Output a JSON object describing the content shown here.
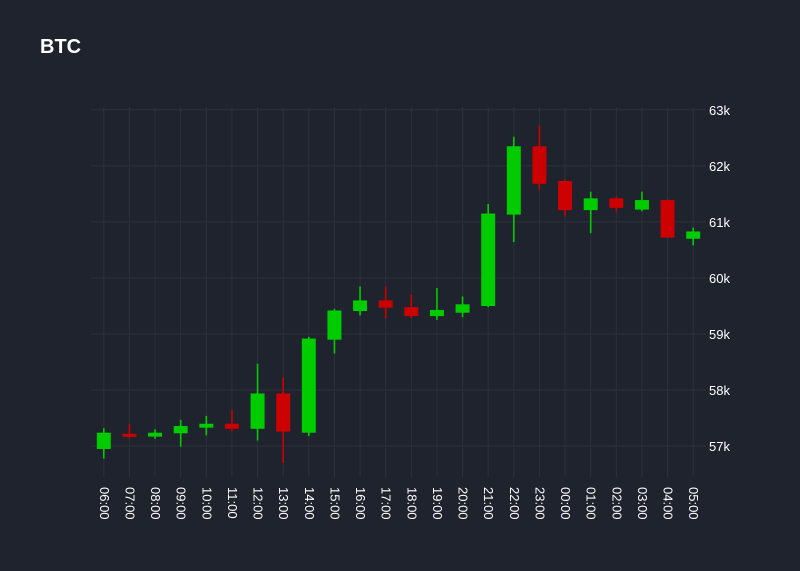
{
  "chart_data": {
    "type": "candlestick",
    "title": "BTC",
    "xlabel": "",
    "ylabel": "",
    "grid": true,
    "y_axis_position": "right",
    "ylim": [
      56450,
      63050
    ],
    "yticks": [
      57000,
      58000,
      59000,
      60000,
      61000,
      62000,
      63000
    ],
    "ytick_labels": [
      "57k",
      "58k",
      "59k",
      "60k",
      "61k",
      "62k",
      "63k"
    ],
    "categories": [
      "06:00",
      "07:00",
      "08:00",
      "09:00",
      "10:00",
      "11:00",
      "12:00",
      "13:00",
      "14:00",
      "15:00",
      "16:00",
      "17:00",
      "18:00",
      "19:00",
      "20:00",
      "21:00",
      "22:00",
      "23:00",
      "00:00",
      "01:00",
      "02:00",
      "03:00",
      "04:00",
      "05:00"
    ],
    "candles": [
      {
        "open": 56950,
        "high": 57320,
        "low": 56780,
        "close": 57240
      },
      {
        "open": 57220,
        "high": 57400,
        "low": 57150,
        "close": 57180
      },
      {
        "open": 57170,
        "high": 57300,
        "low": 57130,
        "close": 57240
      },
      {
        "open": 57230,
        "high": 57470,
        "low": 56990,
        "close": 57360
      },
      {
        "open": 57330,
        "high": 57540,
        "low": 57190,
        "close": 57400
      },
      {
        "open": 57400,
        "high": 57650,
        "low": 57260,
        "close": 57310
      },
      {
        "open": 57310,
        "high": 58470,
        "low": 57100,
        "close": 57940
      },
      {
        "open": 57940,
        "high": 58230,
        "low": 56700,
        "close": 57260
      },
      {
        "open": 57240,
        "high": 58950,
        "low": 57180,
        "close": 58920
      },
      {
        "open": 58900,
        "high": 59450,
        "low": 58650,
        "close": 59420
      },
      {
        "open": 59410,
        "high": 59850,
        "low": 59330,
        "close": 59600
      },
      {
        "open": 59600,
        "high": 59850,
        "low": 59280,
        "close": 59470
      },
      {
        "open": 59480,
        "high": 59700,
        "low": 59280,
        "close": 59320
      },
      {
        "open": 59320,
        "high": 59820,
        "low": 59250,
        "close": 59430
      },
      {
        "open": 59380,
        "high": 59670,
        "low": 59300,
        "close": 59530
      },
      {
        "open": 59500,
        "high": 61320,
        "low": 59480,
        "close": 61150
      },
      {
        "open": 61130,
        "high": 62520,
        "low": 60640,
        "close": 62350
      },
      {
        "open": 62350,
        "high": 62720,
        "low": 61580,
        "close": 61680
      },
      {
        "open": 61730,
        "high": 61760,
        "low": 61100,
        "close": 61210
      },
      {
        "open": 61210,
        "high": 61540,
        "low": 60800,
        "close": 61420
      },
      {
        "open": 61420,
        "high": 61450,
        "low": 61170,
        "close": 61250
      },
      {
        "open": 61220,
        "high": 61540,
        "low": 61190,
        "close": 61390
      },
      {
        "open": 61390,
        "high": 61400,
        "low": 60720,
        "close": 60720
      },
      {
        "open": 60700,
        "high": 60900,
        "low": 60580,
        "close": 60830
      }
    ],
    "colors": {
      "up": "#00cc00",
      "down": "#cc0000",
      "grid": "#2c313c",
      "background": "#1f232d",
      "text": "#ffffff"
    }
  }
}
